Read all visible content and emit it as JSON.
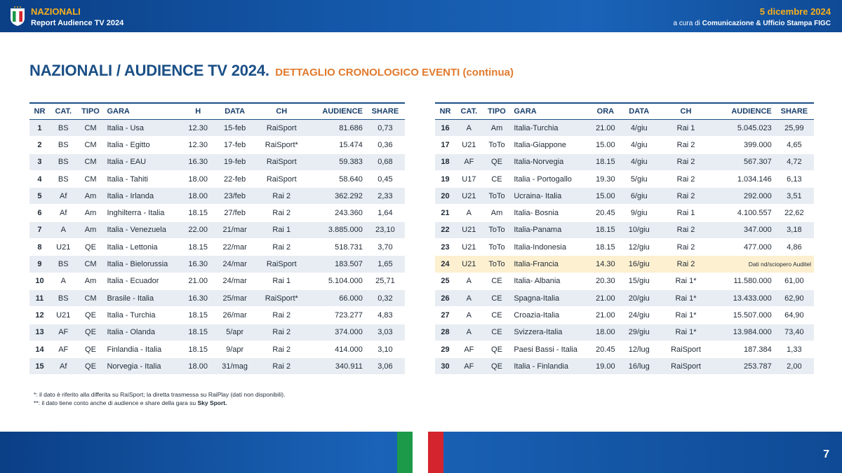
{
  "header": {
    "title": "NAZIONALI",
    "subtitle": "Report Audience TV 2024",
    "date": "5 dicembre 2024",
    "credit_prefix": "a cura di",
    "credit_org": "Comunicazione & Ufficio Stampa FIGC",
    "logo_icon": "figc-shield-logo"
  },
  "page_title": {
    "main": "NAZIONALI / AUDIENCE TV 2024.",
    "sub": "DETTAGLIO CRONOLOGICO EVENTI (continua)"
  },
  "left_table": {
    "headers": [
      "NR",
      "CAT.",
      "TIPO",
      "GARA",
      "H",
      "DATA",
      "CH",
      "AUDIENCE",
      "SHARE"
    ],
    "rows": [
      [
        "1",
        "BS",
        "CM",
        "Italia - Usa",
        "12.30",
        "15-feb",
        "RaiSport",
        "81.686",
        "0,73"
      ],
      [
        "2",
        "BS",
        "CM",
        "Italia - Egitto",
        "12.30",
        "17-feb",
        "RaiSport*",
        "15.474",
        "0,36"
      ],
      [
        "3",
        "BS",
        "CM",
        "Italia - EAU",
        "16.30",
        "19-feb",
        "RaiSport",
        "59.383",
        "0,68"
      ],
      [
        "4",
        "BS",
        "CM",
        "Italia - Tahiti",
        "18.00",
        "22-feb",
        "RaiSport",
        "58.640",
        "0,45"
      ],
      [
        "5",
        "Af",
        "Am",
        "Italia - Irlanda",
        "18.00",
        "23/feb",
        "Rai 2",
        "362.292",
        "2,33"
      ],
      [
        "6",
        "Af",
        "Am",
        "Inghilterra - Italia",
        "18.15",
        "27/feb",
        "Rai 2",
        "243.360",
        "1,64"
      ],
      [
        "7",
        "A",
        "Am",
        "Italia - Venezuela",
        "22.00",
        "21/mar",
        "Rai 1",
        "3.885.000",
        "23,10"
      ],
      [
        "8",
        "U21",
        "QE",
        "Italia - Lettonia",
        "18.15",
        "22/mar",
        "Rai 2",
        "518.731",
        "3,70"
      ],
      [
        "9",
        "BS",
        "CM",
        "Italia - Bielorussia",
        "16.30",
        "24/mar",
        "RaiSport",
        "183.507",
        "1,65"
      ],
      [
        "10",
        "A",
        "Am",
        "Italia - Ecuador",
        "21.00",
        "24/mar",
        "Rai 1",
        "5.104.000",
        "25,71"
      ],
      [
        "11",
        "BS",
        "CM",
        "Brasile - Italia",
        "16.30",
        "25/mar",
        "RaiSport*",
        "66.000",
        "0,32"
      ],
      [
        "12",
        "U21",
        "QE",
        "Italia - Turchia",
        "18.15",
        "26/mar",
        "Rai 2",
        "723.277",
        "4,83"
      ],
      [
        "13",
        "AF",
        "QE",
        "Italia - Olanda",
        "18.15",
        "5/apr",
        "Rai 2",
        "374.000",
        "3,03"
      ],
      [
        "14",
        "AF",
        "QE",
        "Finlandia - Italia",
        "18.15",
        "9/apr",
        "Rai 2",
        "414.000",
        "3,10"
      ],
      [
        "15",
        "Af",
        "QE",
        "Norvegia - Italia",
        "18.00",
        "31/mag",
        "Rai 2",
        "340.911",
        "3,06"
      ]
    ]
  },
  "right_table": {
    "headers": [
      "NR",
      "CAT.",
      "TIPO",
      "GARA",
      "ORA",
      "DATA",
      "CH",
      "AUDIENCE",
      "SHARE"
    ],
    "rows": [
      [
        "16",
        "A",
        "Am",
        "Italia-Turchia",
        "21.00",
        "4/giu",
        "Rai 1",
        "5.045.023",
        "25,99"
      ],
      [
        "17",
        "U21",
        "ToTo",
        "Italia-Giappone",
        "15.00",
        "4/giu",
        "Rai 2",
        "399.000",
        "4,65"
      ],
      [
        "18",
        "AF",
        "QE",
        "Italia-Norvegia",
        "18.15",
        "4/giu",
        "Rai 2",
        "567.307",
        "4,72"
      ],
      [
        "19",
        "U17",
        "CE",
        "Italia - Portogallo",
        "19.30",
        "5/giu",
        "Rai 2",
        "1.034.146",
        "6,13"
      ],
      [
        "20",
        "U21",
        "ToTo",
        "Ucraina- Italia",
        "15.00",
        "6/giu",
        "Rai 2",
        "292.000",
        "3,51"
      ],
      [
        "21",
        "A",
        "Am",
        "Italia- Bosnia",
        "20.45",
        "9/giu",
        "Rai 1",
        "4.100.557",
        "22,62"
      ],
      [
        "22",
        "U21",
        "ToTo",
        "Italia-Panama",
        "18.15",
        "10/giu",
        "Rai 2",
        "347.000",
        "3,18"
      ],
      [
        "23",
        "U21",
        "ToTo",
        "Italia-Indonesia",
        "18.15",
        "12/giu",
        "Rai 2",
        "477.000",
        "4,86"
      ],
      [
        "24",
        "U21",
        "ToTo",
        "Italia-Francia",
        "14.30",
        "16/giu",
        "Rai 2",
        "Dati nd/sciopero Auditel",
        ""
      ],
      [
        "25",
        "A",
        "CE",
        "Italia- Albania",
        "20.30",
        "15/giu",
        "Rai 1*",
        "11.580.000",
        "61,00"
      ],
      [
        "26",
        "A",
        "CE",
        "Spagna-Italia",
        "21.00",
        "20/giu",
        "Rai 1*",
        "13.433.000",
        "62,90"
      ],
      [
        "27",
        "A",
        "CE",
        "Croazia-Italia",
        "21.00",
        "24/giu",
        "Rai 1*",
        "15.507.000",
        "64,90"
      ],
      [
        "28",
        "A",
        "CE",
        "Svizzera-Italia",
        "18.00",
        "29/giu",
        "Rai 1*",
        "13.984.000",
        "73,40"
      ],
      [
        "29",
        "AF",
        "QE",
        "Paesi Bassi - Italia",
        "20.45",
        "12/lug",
        "RaiSport",
        "187.384",
        "1,33"
      ],
      [
        "30",
        "AF",
        "QE",
        "Italia - Finlandia",
        "19.00",
        "16/lug",
        "RaiSport",
        "253.787",
        "2,00"
      ]
    ],
    "highlight_row": "24"
  },
  "footnotes": {
    "note1": "*: il dato è riferito alla differita su RaiSport; la diretta trasmessa su RaiPlay (dati non disponibili).",
    "note2_prefix": "**: il dato tiene conto anche di audience e share della gara su",
    "note2_bold": "Sky Sport."
  },
  "page_number": "7",
  "colors": {
    "primary_blue": "#1a4f86",
    "accent_orange": "#e07a2e",
    "header_gold": "#f6b01c",
    "stripe": "#e8edf3",
    "highlight": "#fdf0d0",
    "flag_green": "#1c9a4a",
    "flag_white": "#ffffff",
    "flag_red": "#d4252f"
  }
}
